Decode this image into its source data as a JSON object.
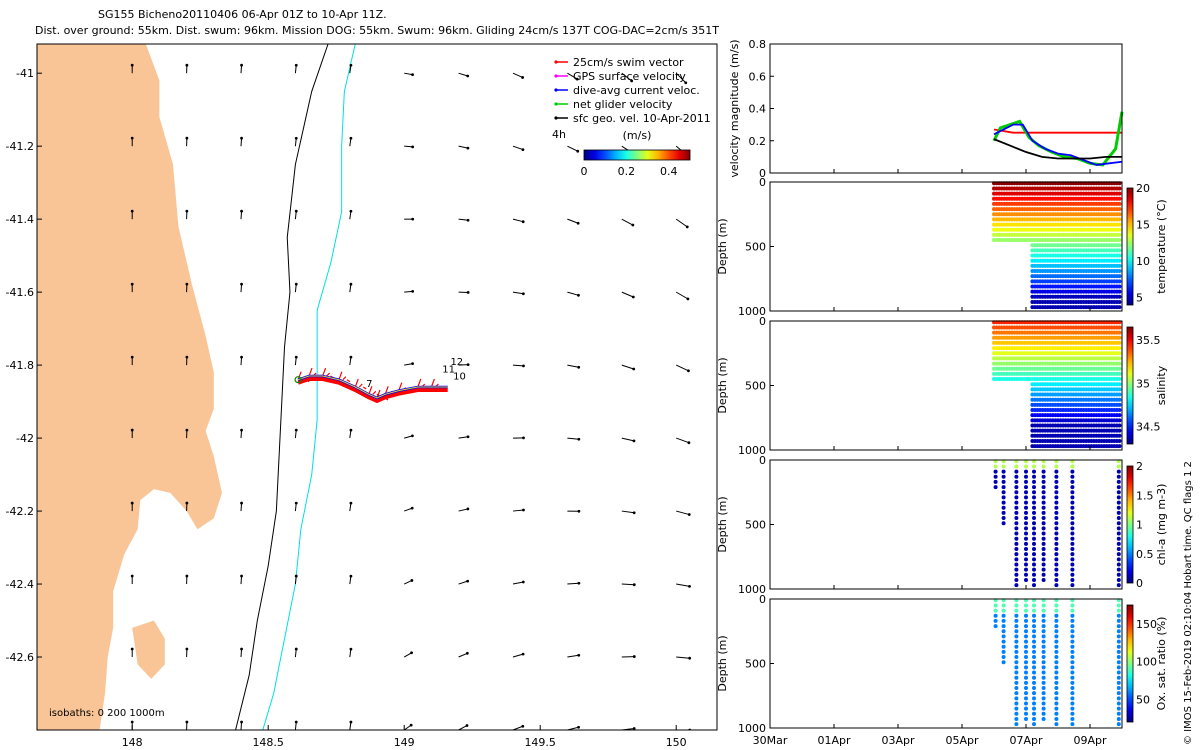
{
  "header": {
    "line1": "SG155 Bicheno20110406 06-Apr 01Z to 10-Apr 11Z.",
    "line2": "Dist. over ground: 55km. Dist. swum: 96km. Mission DOG: 55km. Swum: 96km. Gliding 24cm/s 137T COG-DAC=2cm/s 351T"
  },
  "side_text": "© IMOS 15-Feb-2019 02:10:04 Hobart time. QC flags 1  2",
  "chart_data": [
    {
      "type": "map",
      "name": "glider track and current vectors",
      "lon_range": [
        147.65,
        150.15
      ],
      "lat_range": [
        -42.8,
        -40.92
      ],
      "x_ticks": [
        148,
        148.5,
        149,
        149.5,
        150
      ],
      "x_tick_labels": [
        "148",
        "148.5",
        "149",
        "149.5",
        "150"
      ],
      "y_ticks": [
        -41,
        -41.2,
        -41.4,
        -41.6,
        -41.8,
        -42,
        -42.2,
        -42.4,
        -42.6
      ],
      "y_tick_labels": [
        "-41",
        "-41.2",
        "-41.4",
        "-41.6",
        "-41.8",
        "-42",
        "-42.2",
        "-42.4",
        "-42.6"
      ],
      "legend": [
        {
          "label": "25cm/s swim vector",
          "color": "#ff0000"
        },
        {
          "label": "GPS surface velocity",
          "color": "#ff00ff"
        },
        {
          "label": "dive-avg current veloc.",
          "color": "#0000ff"
        },
        {
          "label": "net glider velocity",
          "color": "#00cc00"
        },
        {
          "label": "sfc geo. vel. 10-Apr-2011",
          "color": "#000000"
        }
      ],
      "legend_note": "4h",
      "colorbar": {
        "title": "(m/s)",
        "range": [
          0,
          0.5
        ],
        "tick_labels": [
          "0",
          "0.2",
          "0.4"
        ],
        "position": "top-right"
      },
      "isobaths_label": "isobaths: 0   200  1000m",
      "isobaths": [
        {
          "depth": 200,
          "color": "#000000",
          "points": [
            [
              148.72,
              -40.92
            ],
            [
              148.66,
              -41.05
            ],
            [
              148.6,
              -41.25
            ],
            [
              148.57,
              -41.45
            ],
            [
              148.58,
              -41.6
            ],
            [
              148.56,
              -41.75
            ],
            [
              148.55,
              -41.9
            ],
            [
              148.54,
              -42.05
            ],
            [
              148.53,
              -42.2
            ],
            [
              148.5,
              -42.35
            ],
            [
              148.46,
              -42.5
            ],
            [
              148.43,
              -42.65
            ],
            [
              148.38,
              -42.8
            ]
          ]
        },
        {
          "depth": 1000,
          "color": "#00e0e0",
          "points": [
            [
              148.82,
              -40.92
            ],
            [
              148.78,
              -41.05
            ],
            [
              148.77,
              -41.2
            ],
            [
              148.77,
              -41.38
            ],
            [
              148.73,
              -41.52
            ],
            [
              148.68,
              -41.65
            ],
            [
              148.68,
              -41.8
            ],
            [
              148.68,
              -41.95
            ],
            [
              148.66,
              -42.1
            ],
            [
              148.62,
              -42.25
            ],
            [
              148.6,
              -42.4
            ],
            [
              148.56,
              -42.55
            ],
            [
              148.52,
              -42.7
            ],
            [
              148.48,
              -42.8
            ]
          ]
        }
      ],
      "land": [
        [
          [
            147.65,
            -40.92
          ],
          [
            148.05,
            -40.92
          ],
          [
            148.1,
            -41.02
          ],
          [
            148.1,
            -41.12
          ],
          [
            148.15,
            -41.25
          ],
          [
            148.17,
            -41.42
          ],
          [
            148.22,
            -41.58
          ],
          [
            148.27,
            -41.72
          ],
          [
            148.3,
            -41.82
          ],
          [
            148.3,
            -41.92
          ],
          [
            148.27,
            -41.98
          ],
          [
            148.3,
            -42.05
          ],
          [
            148.33,
            -42.15
          ],
          [
            148.3,
            -42.22
          ],
          [
            148.24,
            -42.25
          ],
          [
            148.2,
            -42.2
          ],
          [
            148.14,
            -42.15
          ],
          [
            148.08,
            -42.14
          ],
          [
            148.03,
            -42.17
          ],
          [
            148.02,
            -42.25
          ],
          [
            147.97,
            -42.32
          ],
          [
            147.93,
            -42.42
          ],
          [
            147.93,
            -42.52
          ],
          [
            147.91,
            -42.6
          ],
          [
            147.9,
            -42.7
          ],
          [
            147.88,
            -42.8
          ],
          [
            147.65,
            -42.8
          ]
        ],
        [
          [
            148.0,
            -42.52
          ],
          [
            148.08,
            -42.5
          ],
          [
            148.12,
            -42.55
          ],
          [
            148.12,
            -42.62
          ],
          [
            148.07,
            -42.66
          ],
          [
            148.02,
            -42.62
          ]
        ]
      ],
      "track": [
        [
          148.61,
          -41.84
        ],
        [
          148.65,
          -41.83
        ],
        [
          148.7,
          -41.83
        ],
        [
          148.76,
          -41.84
        ],
        [
          148.82,
          -41.86
        ],
        [
          148.87,
          -41.88
        ],
        [
          148.9,
          -41.89
        ],
        [
          148.93,
          -41.88
        ],
        [
          148.98,
          -41.87
        ],
        [
          149.05,
          -41.86
        ],
        [
          149.1,
          -41.86
        ],
        [
          149.16,
          -41.86
        ]
      ],
      "track_labels": [
        {
          "text": "7",
          "lon": 148.86,
          "lat": -41.86
        },
        {
          "text": "12",
          "lon": 149.17,
          "lat": -41.8
        },
        {
          "text": "11",
          "lon": 149.14,
          "lat": -41.82
        },
        {
          "text": "10",
          "lon": 149.18,
          "lat": -41.84
        }
      ],
      "vector_grid": {
        "lons": [
          148.0,
          148.2,
          148.4,
          148.6,
          148.8,
          149.0,
          149.2,
          149.4,
          149.6,
          149.8,
          150.0
        ],
        "lats": [
          -41.0,
          -41.2,
          -41.4,
          -41.6,
          -41.8,
          -42.0,
          -42.2,
          -42.4,
          -42.6,
          -42.8
        ]
      }
    },
    {
      "type": "line",
      "name": "velocity panel",
      "ylabel": "velocity magnitude (m/s)",
      "ylim": [
        0,
        0.8
      ],
      "y_tick_labels": [
        "0",
        "0.2",
        "0.4",
        "0.6",
        "0.8"
      ],
      "x_range_days": [
        0,
        11
      ],
      "series": [
        {
          "color": "#ff0000",
          "points": [
            [
              7.0,
              0.27
            ],
            [
              7.6,
              0.25
            ],
            [
              8.2,
              0.25
            ],
            [
              11.0,
              0.25
            ]
          ]
        },
        {
          "color": "#00cc00",
          "points": [
            [
              7.0,
              0.2
            ],
            [
              7.2,
              0.28
            ],
            [
              7.5,
              0.3
            ],
            [
              7.8,
              0.32
            ],
            [
              8.1,
              0.22
            ],
            [
              8.4,
              0.17
            ],
            [
              8.8,
              0.13
            ],
            [
              9.2,
              0.1
            ],
            [
              9.6,
              0.09
            ],
            [
              10.0,
              0.06
            ],
            [
              10.4,
              0.05
            ],
            [
              10.8,
              0.15
            ],
            [
              11.0,
              0.38
            ]
          ]
        },
        {
          "color": "#0000ff",
          "points": [
            [
              7.0,
              0.24
            ],
            [
              7.3,
              0.27
            ],
            [
              7.6,
              0.3
            ],
            [
              7.9,
              0.3
            ],
            [
              8.2,
              0.2
            ],
            [
              8.6,
              0.15
            ],
            [
              9.0,
              0.12
            ],
            [
              9.4,
              0.11
            ],
            [
              9.8,
              0.08
            ],
            [
              10.2,
              0.05
            ],
            [
              10.6,
              0.06
            ],
            [
              11.0,
              0.07
            ]
          ]
        },
        {
          "color": "#000000",
          "points": [
            [
              7.0,
              0.21
            ],
            [
              7.5,
              0.17
            ],
            [
              8.0,
              0.13
            ],
            [
              8.5,
              0.1
            ],
            [
              9.0,
              0.09
            ],
            [
              9.5,
              0.09
            ],
            [
              10.0,
              0.09
            ],
            [
              10.5,
              0.1
            ],
            [
              11.0,
              0.1
            ]
          ]
        }
      ]
    },
    {
      "type": "scatter",
      "name": "temperature section",
      "ylabel": "Depth (m)",
      "colorbar_label": "temperature (°C)",
      "colorbar_tick_labels": [
        "5",
        "10",
        "15",
        "20"
      ],
      "colorbar_range": [
        4,
        20
      ],
      "y_tick_labels": [
        "0",
        "500",
        "1000"
      ],
      "depth_range": [
        0,
        1000
      ]
    },
    {
      "type": "scatter",
      "name": "salinity section",
      "ylabel": "Depth (m)",
      "colorbar_label": "salinity",
      "colorbar_tick_labels": [
        "34.5",
        "35",
        "35.5"
      ],
      "colorbar_range": [
        34.3,
        35.65
      ],
      "y_tick_labels": [
        "0",
        "500",
        "1000"
      ],
      "depth_range": [
        0,
        1000
      ]
    },
    {
      "type": "scatter",
      "name": "chlorophyll section",
      "ylabel": "Depth (m)",
      "colorbar_label": "chl-a (mg m-3)",
      "colorbar_tick_labels": [
        "0",
        "0.5",
        "1",
        "1.5",
        "2"
      ],
      "colorbar_range": [
        0,
        2
      ],
      "y_tick_labels": [
        "0",
        "500",
        "1000"
      ],
      "depth_range": [
        0,
        1000
      ]
    },
    {
      "type": "scatter",
      "name": "oxygen section",
      "ylabel": "Depth (m)",
      "colorbar_label": "Ox. sat. ratio (%)",
      "colorbar_tick_labels": [
        "50",
        "100",
        "150"
      ],
      "colorbar_range": [
        20,
        175
      ],
      "y_tick_labels": [
        "0",
        "500",
        "1000"
      ],
      "depth_range": [
        0,
        1000
      ],
      "x_tick_labels": [
        "30Mar",
        "01Apr",
        "03Apr",
        "05Apr",
        "07Apr",
        "09Apr"
      ]
    }
  ]
}
